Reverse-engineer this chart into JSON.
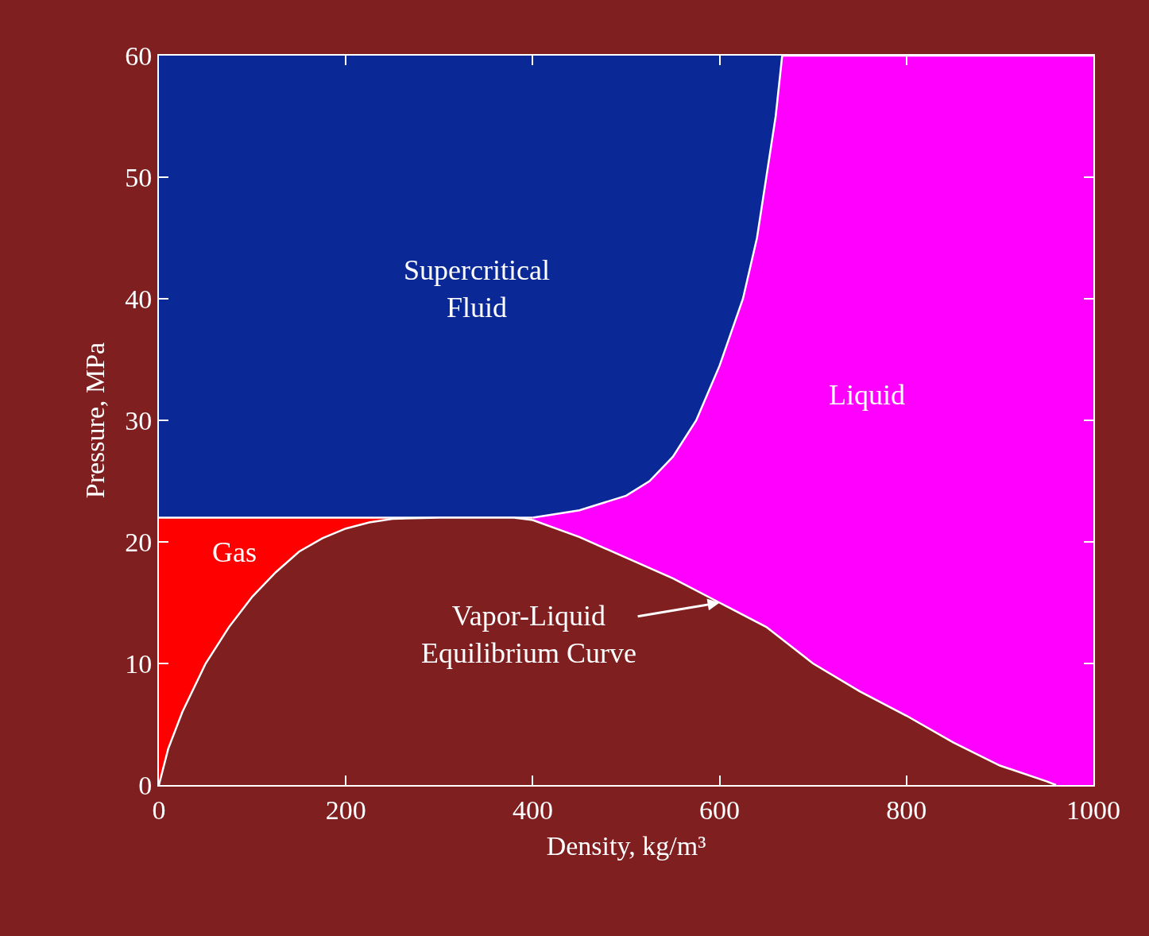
{
  "chart_data": {
    "type": "area",
    "xlabel": "Density, kg/m³",
    "ylabel": "Pressure, MPa",
    "xlim": [
      0,
      1000
    ],
    "ylim": [
      0,
      60
    ],
    "xticks": [
      0,
      200,
      400,
      600,
      800,
      1000
    ],
    "yticks": [
      0,
      10,
      20,
      30,
      40,
      50,
      60
    ],
    "grid": false,
    "bands": [
      {
        "axis": "y",
        "from": 22,
        "to": 60,
        "color": "#0a2896"
      }
    ],
    "series": [
      {
        "color": "#ff0000",
        "x": [
          0,
          400
        ],
        "values": [
          22,
          22
        ]
      },
      {
        "color": "#ff00ff",
        "x": [
          400,
          450,
          500,
          525,
          550,
          575,
          600,
          625,
          640,
          650,
          660,
          667,
          1000
        ],
        "values": [
          22,
          22.6,
          23.8,
          25,
          27,
          30,
          34.5,
          40,
          45,
          50,
          55,
          60,
          60
        ]
      },
      {
        "color": "#7f1f1f",
        "x": [
          0,
          10,
          25,
          50,
          75,
          100,
          125,
          150,
          175,
          200,
          225,
          250,
          300,
          350,
          380,
          400,
          450,
          500,
          550,
          600,
          650,
          700,
          750,
          800,
          850,
          900,
          950,
          960
        ],
        "values": [
          0,
          3,
          6,
          10,
          13,
          15.5,
          17.5,
          19.2,
          20.3,
          21.1,
          21.6,
          21.9,
          22,
          22,
          22,
          21.8,
          20.4,
          18.7,
          17,
          15,
          13,
          10,
          7.7,
          5.7,
          3.5,
          1.6,
          0.3,
          0
        ]
      }
    ],
    "annotations": [
      "Supercritical\nFluid",
      "Liquid",
      "Gas",
      {
        "text": "Vapor-Liquid\nEquilibrium Curve",
        "x": 600,
        "y": 15
      }
    ]
  }
}
